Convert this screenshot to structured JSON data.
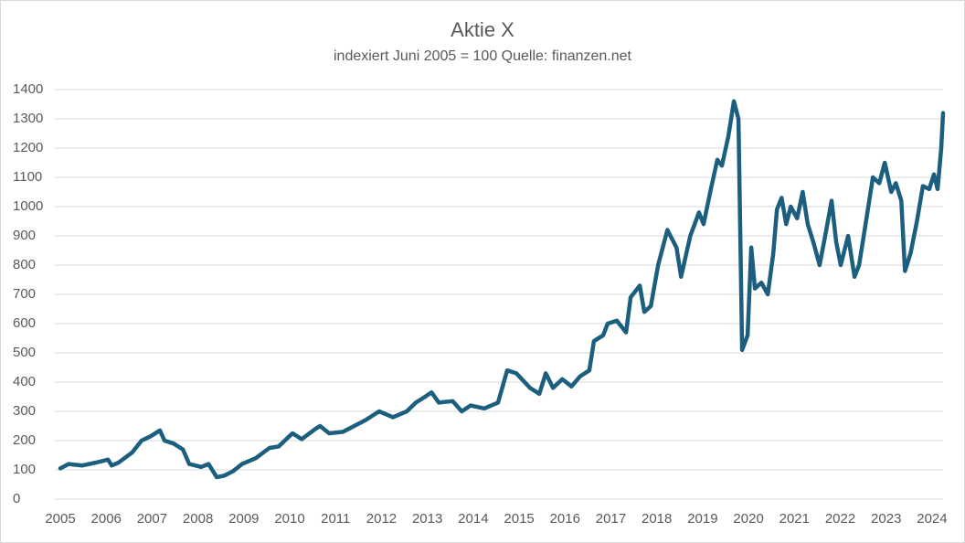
{
  "chart_data": {
    "type": "line",
    "title": "Aktie X",
    "subtitle": "indexiert Juni 2005 = 100 Quelle: finanzen.net",
    "x": [
      2005.0,
      2005.18,
      2005.48,
      2005.78,
      2006.04,
      2006.12,
      2006.27,
      2006.57,
      2006.77,
      2006.97,
      2007.17,
      2007.27,
      2007.47,
      2007.67,
      2007.81,
      2008.07,
      2008.23,
      2008.41,
      2008.57,
      2008.76,
      2008.96,
      2009.26,
      2009.56,
      2009.76,
      2009.96,
      2010.06,
      2010.26,
      2010.56,
      2010.66,
      2010.86,
      2011.16,
      2011.65,
      2011.95,
      2012.25,
      2012.55,
      2012.75,
      2012.95,
      2013.09,
      2013.25,
      2013.55,
      2013.75,
      2013.94,
      2014.24,
      2014.54,
      2014.74,
      2014.94,
      2015.24,
      2015.44,
      2015.58,
      2015.74,
      2015.94,
      2016.14,
      2016.33,
      2016.53,
      2016.63,
      2016.83,
      2016.93,
      2017.13,
      2017.33,
      2017.43,
      2017.63,
      2017.73,
      2017.87,
      2018.03,
      2018.23,
      2018.43,
      2018.53,
      2018.73,
      2018.92,
      2019.02,
      2019.18,
      2019.32,
      2019.42,
      2019.56,
      2019.68,
      2019.78,
      2019.86,
      2019.98,
      2020.06,
      2020.14,
      2020.28,
      2020.42,
      2020.54,
      2020.62,
      2020.72,
      2020.82,
      2020.92,
      2021.06,
      2021.18,
      2021.29,
      2021.41,
      2021.55,
      2021.67,
      2021.81,
      2021.91,
      2022.01,
      2022.17,
      2022.31,
      2022.41,
      2022.57,
      2022.71,
      2022.85,
      2022.97,
      2023.11,
      2023.21,
      2023.33,
      2023.41,
      2023.53,
      2023.67,
      2023.8,
      2023.94,
      2024.04,
      2024.12,
      2024.2,
      2024.24
    ],
    "series": [
      {
        "name": "Aktie X",
        "color": "#1b5e7e",
        "values": [
          105,
          120,
          115,
          125,
          135,
          115,
          125,
          160,
          200,
          215,
          235,
          200,
          190,
          170,
          120,
          110,
          120,
          75,
          80,
          95,
          120,
          140,
          175,
          180,
          210,
          225,
          205,
          240,
          250,
          225,
          230,
          270,
          300,
          280,
          300,
          330,
          350,
          365,
          330,
          335,
          300,
          320,
          310,
          330,
          440,
          430,
          380,
          360,
          430,
          380,
          410,
          385,
          420,
          440,
          540,
          560,
          600,
          610,
          570,
          690,
          730,
          640,
          660,
          800,
          920,
          860,
          760,
          900,
          980,
          940,
          1060,
          1160,
          1140,
          1240,
          1360,
          1300,
          510,
          560,
          860,
          720,
          740,
          700,
          840,
          990,
          1030,
          940,
          1000,
          960,
          1050,
          940,
          880,
          800,
          900,
          1020,
          880,
          800,
          900,
          760,
          800,
          960,
          1100,
          1080,
          1150,
          1050,
          1080,
          1020,
          780,
          840,
          950,
          1070,
          1060,
          1110,
          1060,
          1200,
          1320
        ]
      }
    ],
    "xlim": [
      2005,
      2024.24
    ],
    "xticks": [
      2005,
      2006,
      2007,
      2008,
      2009,
      2010,
      2011,
      2012,
      2013,
      2014,
      2015,
      2016,
      2017,
      2018,
      2019,
      2020,
      2021,
      2022,
      2023,
      2024
    ],
    "ylim": [
      0,
      1400
    ],
    "yticks": [
      0,
      100,
      200,
      300,
      400,
      500,
      600,
      700,
      800,
      900,
      1000,
      1100,
      1200,
      1300,
      1400
    ],
    "grid": true
  }
}
